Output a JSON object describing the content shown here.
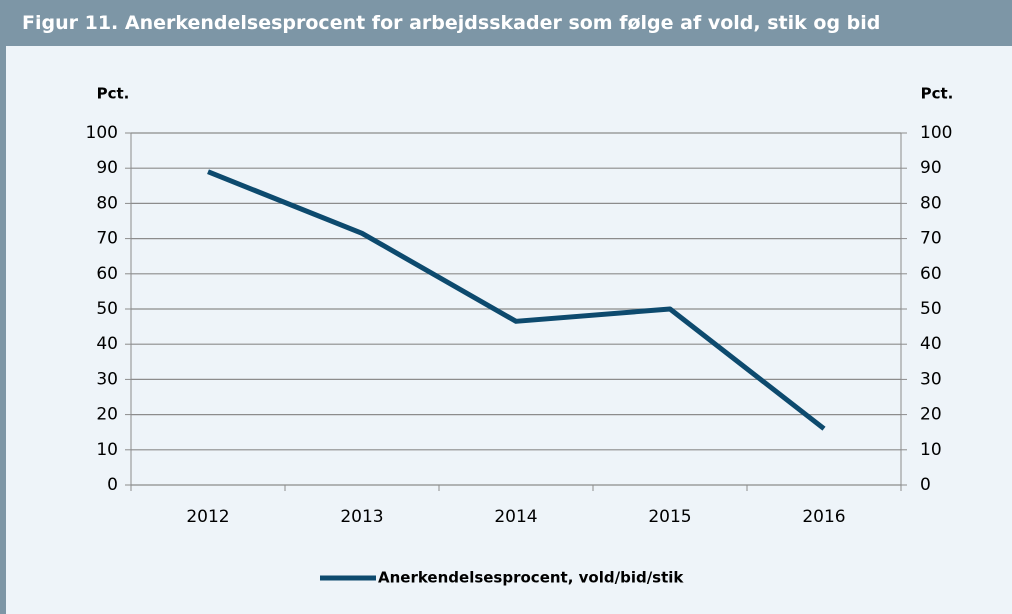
{
  "chart_data": {
    "type": "line",
    "title": "Figur 11. Anerkendelsesprocent for arbejdsskader som følge af vold, stik og bid",
    "y_label": "Pct.",
    "y2_label": "Pct.",
    "categories": [
      "2012",
      "2013",
      "2014",
      "2015",
      "2016"
    ],
    "series": [
      {
        "name": "Anerkendelsesprocent, vold/bid/stik",
        "color": "#0d4a6e",
        "values": [
          89,
          71.5,
          46.5,
          50,
          16
        ]
      }
    ],
    "ylim": [
      0,
      100
    ],
    "yticks": [
      0,
      10,
      20,
      30,
      40,
      50,
      60,
      70,
      80,
      90,
      100
    ],
    "y2lim": [
      0,
      100
    ],
    "y2ticks": [
      0,
      10,
      20,
      30,
      40,
      50,
      60,
      70,
      80,
      90,
      100
    ],
    "grid": true,
    "legend": "bottom"
  }
}
